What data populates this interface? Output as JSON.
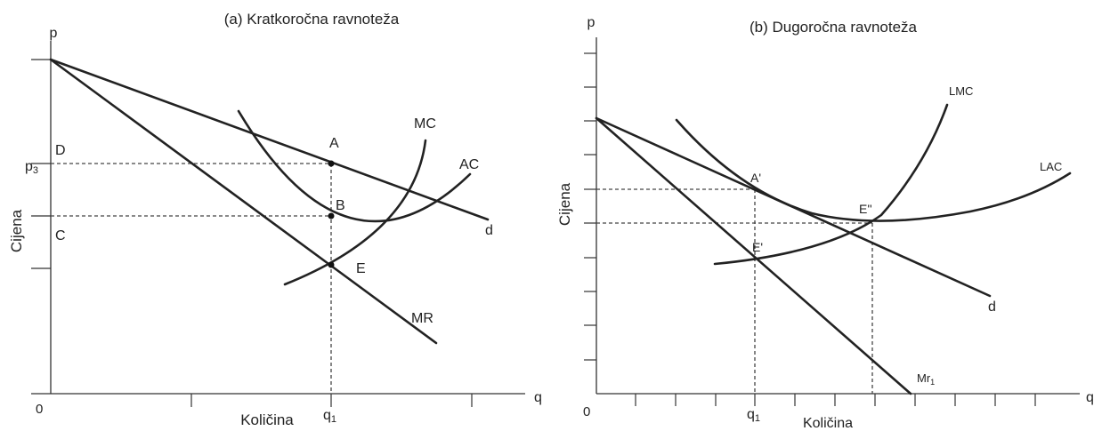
{
  "panel_a": {
    "title": "(a) Kratkoročna ravnoteža",
    "axis_p": "p",
    "axis_q": "q",
    "origin": "0",
    "ylabel": "Cijena",
    "xlabel": "Količina",
    "price_p3": "p",
    "price_p3_sub": "3",
    "qty_q1": "q",
    "qty_q1_sub": "1",
    "label_D": "D",
    "label_C": "C",
    "label_A": "A",
    "label_B": "B",
    "label_E": "E",
    "curve_MC": "MC",
    "curve_AC": "AC",
    "curve_MR": "MR",
    "curve_d": "d"
  },
  "panel_b": {
    "title": "(b) Dugoročna ravnoteža",
    "axis_p": "p",
    "axis_q": "q",
    "origin": "0",
    "ylabel": "Cijena",
    "xlabel": "Količina",
    "qty_q1": "q",
    "qty_q1_sub": "1",
    "label_A": "A'",
    "label_E1": "E'",
    "label_E2": "E''",
    "curve_LMC": "LMC",
    "curve_LAC": "LAC",
    "curve_d": "d",
    "curve_Mr": "Mr",
    "curve_Mr_sub": "1"
  }
}
